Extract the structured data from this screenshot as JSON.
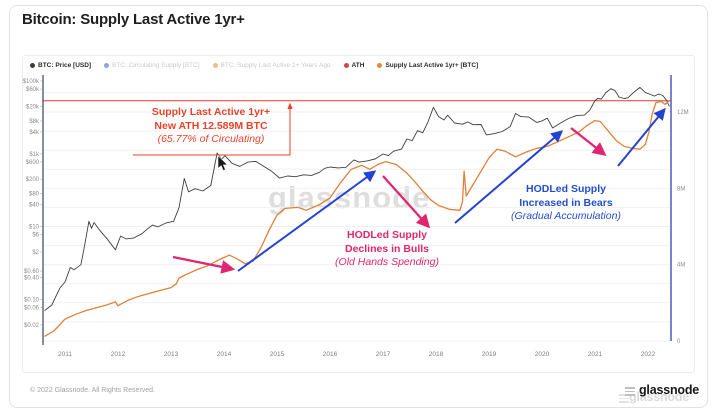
{
  "title": "Bitcoin: Supply Last Active 1yr+",
  "legend": {
    "items": [
      {
        "label": "BTC: Price [USD]",
        "dot_color": "#3d3d3d",
        "enabled": true
      },
      {
        "label": "BTC: Circulating Supply [BTC]",
        "dot_color": "#8aa2e8",
        "enabled": false
      },
      {
        "label": "BTC: Supply Last Active 1+ Years Ago",
        "dot_color": "#f2bb8a",
        "enabled": false
      },
      {
        "label": "ATH",
        "dot_color": "#d6453e",
        "enabled": true
      },
      {
        "label": "Supply Last Active 1yr+ [BTC]",
        "dot_color": "#e8863d",
        "enabled": true
      }
    ]
  },
  "chart_data": {
    "type": "line",
    "title": "Bitcoin: Supply Last Active 1yr+",
    "x_axis": {
      "ticks": [
        2011,
        2012,
        2013,
        2014,
        2015,
        2016,
        2017,
        2018,
        2019,
        2020,
        2021,
        2022
      ],
      "range": [
        2010.6,
        2022.45
      ]
    },
    "left_axis": {
      "name": "BTC Price [USD]",
      "scale": "log",
      "ticks": [
        {
          "label": "$100k",
          "value": 100000
        },
        {
          "label": "$60k",
          "value": 60000
        },
        {
          "label": "$20k",
          "value": 20000
        },
        {
          "label": "$8k",
          "value": 8000
        },
        {
          "label": "$4k",
          "value": 4000
        },
        {
          "label": "$1k",
          "value": 1000
        },
        {
          "label": "$600",
          "value": 600
        },
        {
          "label": "$200",
          "value": 200
        },
        {
          "label": "$80",
          "value": 80
        },
        {
          "label": "$40",
          "value": 40
        },
        {
          "label": "$10",
          "value": 10
        },
        {
          "label": "$6",
          "value": 6
        },
        {
          "label": "$2",
          "value": 2
        },
        {
          "label": "$0.60",
          "value": 0.6
        },
        {
          "label": "$0.40",
          "value": 0.4
        },
        {
          "label": "$0.10",
          "value": 0.1
        },
        {
          "label": "$0.06",
          "value": 0.06
        },
        {
          "label": "$0.02",
          "value": 0.02
        }
      ]
    },
    "right_axis": {
      "name": "Supply Last Active 1yr+ [BTC]",
      "scale": "linear",
      "range_millions": [
        0,
        13
      ],
      "ticks": [
        {
          "label": "12M",
          "value": 12
        },
        {
          "label": "8M",
          "value": 8
        },
        {
          "label": "4M",
          "value": 4
        },
        {
          "label": "0",
          "value": 0
        }
      ]
    },
    "ath": {
      "label": "ATH",
      "value_m_btc": 12.589,
      "percent_of_circulating": "65.77%",
      "color": "#e23b30"
    },
    "series": [
      {
        "name": "BTC: Price [USD]",
        "axis": "left",
        "color": "#3f3f3f",
        "width": 0.9,
        "points": [
          [
            2010.62,
            0.05
          ],
          [
            2010.75,
            0.07
          ],
          [
            2010.9,
            0.2
          ],
          [
            2011.0,
            0.3
          ],
          [
            2011.1,
            0.75
          ],
          [
            2011.17,
            0.65
          ],
          [
            2011.3,
            0.9
          ],
          [
            2011.37,
            3
          ],
          [
            2011.45,
            14
          ],
          [
            2011.5,
            9
          ],
          [
            2011.55,
            13
          ],
          [
            2011.65,
            8
          ],
          [
            2011.8,
            4.5
          ],
          [
            2011.95,
            2.3
          ],
          [
            2012.05,
            5.5
          ],
          [
            2012.15,
            4.6
          ],
          [
            2012.3,
            4.9
          ],
          [
            2012.45,
            6.4
          ],
          [
            2012.55,
            8.5
          ],
          [
            2012.65,
            11
          ],
          [
            2012.75,
            9.8
          ],
          [
            2012.9,
            12.5
          ],
          [
            2013.05,
            14
          ],
          [
            2013.15,
            33
          ],
          [
            2013.25,
            210
          ],
          [
            2013.33,
            90
          ],
          [
            2013.45,
            110
          ],
          [
            2013.6,
            95
          ],
          [
            2013.75,
            135
          ],
          [
            2013.87,
            1050
          ],
          [
            2013.95,
            720
          ],
          [
            2014.02,
            880
          ],
          [
            2014.15,
            550
          ],
          [
            2014.3,
            450
          ],
          [
            2014.45,
            590
          ],
          [
            2014.6,
            620
          ],
          [
            2014.75,
            450
          ],
          [
            2014.9,
            330
          ],
          [
            2015.05,
            215
          ],
          [
            2015.2,
            245
          ],
          [
            2015.35,
            235
          ],
          [
            2015.5,
            265
          ],
          [
            2015.65,
            255
          ],
          [
            2015.8,
            310
          ],
          [
            2015.9,
            400
          ],
          [
            2016.0,
            435
          ],
          [
            2016.15,
            410
          ],
          [
            2016.3,
            425
          ],
          [
            2016.45,
            680
          ],
          [
            2016.55,
            590
          ],
          [
            2016.7,
            640
          ],
          [
            2016.85,
            720
          ],
          [
            2017.0,
            990
          ],
          [
            2017.1,
            890
          ],
          [
            2017.2,
            1180
          ],
          [
            2017.35,
            1350
          ],
          [
            2017.45,
            2550
          ],
          [
            2017.55,
            2300
          ],
          [
            2017.65,
            4300
          ],
          [
            2017.75,
            3800
          ],
          [
            2017.85,
            7500
          ],
          [
            2017.95,
            19000
          ],
          [
            2018.05,
            10500
          ],
          [
            2018.15,
            8500
          ],
          [
            2018.22,
            11500
          ],
          [
            2018.35,
            7000
          ],
          [
            2018.5,
            6500
          ],
          [
            2018.6,
            7500
          ],
          [
            2018.7,
            6300
          ],
          [
            2018.85,
            6400
          ],
          [
            2018.95,
            3300
          ],
          [
            2019.1,
            3600
          ],
          [
            2019.25,
            4100
          ],
          [
            2019.4,
            5600
          ],
          [
            2019.5,
            12800
          ],
          [
            2019.6,
            10500
          ],
          [
            2019.75,
            10200
          ],
          [
            2019.9,
            7300
          ],
          [
            2020.0,
            8000
          ],
          [
            2020.1,
            9500
          ],
          [
            2020.2,
            5100
          ],
          [
            2020.35,
            7000
          ],
          [
            2020.5,
            9300
          ],
          [
            2020.65,
            11200
          ],
          [
            2020.8,
            11600
          ],
          [
            2020.9,
            15800
          ],
          [
            2021.0,
            29000
          ],
          [
            2021.05,
            33000
          ],
          [
            2021.12,
            32000
          ],
          [
            2021.2,
            47000
          ],
          [
            2021.3,
            61500
          ],
          [
            2021.38,
            54000
          ],
          [
            2021.45,
            36500
          ],
          [
            2021.55,
            33000
          ],
          [
            2021.62,
            34500
          ],
          [
            2021.72,
            47500
          ],
          [
            2021.85,
            66500
          ],
          [
            2021.95,
            48000
          ],
          [
            2022.05,
            42500
          ],
          [
            2022.12,
            38500
          ],
          [
            2022.2,
            44000
          ],
          [
            2022.28,
            40000
          ],
          [
            2022.35,
            29500
          ],
          [
            2022.4,
            20500
          ]
        ]
      },
      {
        "name": "Supply Last Active 1yr+ [BTC]",
        "axis": "right",
        "color": "#e0813a",
        "width": 1.3,
        "points": [
          [
            2010.62,
            0.25
          ],
          [
            2010.8,
            0.55
          ],
          [
            2011.0,
            1.15
          ],
          [
            2011.2,
            1.4
          ],
          [
            2011.4,
            1.6
          ],
          [
            2011.6,
            1.75
          ],
          [
            2011.8,
            1.9
          ],
          [
            2011.95,
            2.05
          ],
          [
            2012.0,
            1.85
          ],
          [
            2012.2,
            2.15
          ],
          [
            2012.4,
            2.35
          ],
          [
            2012.6,
            2.5
          ],
          [
            2012.8,
            2.65
          ],
          [
            2013.0,
            2.8
          ],
          [
            2013.1,
            3.0
          ],
          [
            2013.15,
            3.3
          ],
          [
            2013.3,
            3.5
          ],
          [
            2013.5,
            3.75
          ],
          [
            2013.7,
            3.95
          ],
          [
            2013.9,
            4.25
          ],
          [
            2014.1,
            4.5
          ],
          [
            2014.25,
            4.3
          ],
          [
            2014.4,
            4.05
          ],
          [
            2014.55,
            4.2
          ],
          [
            2014.7,
            4.9
          ],
          [
            2014.85,
            5.8
          ],
          [
            2015.0,
            6.6
          ],
          [
            2015.15,
            6.95
          ],
          [
            2015.4,
            7.0
          ],
          [
            2015.55,
            6.85
          ],
          [
            2015.8,
            7.15
          ],
          [
            2016.0,
            7.5
          ],
          [
            2016.2,
            8.3
          ],
          [
            2016.4,
            9.0
          ],
          [
            2016.6,
            9.2
          ],
          [
            2016.75,
            9.0
          ],
          [
            2016.9,
            9.25
          ],
          [
            2017.05,
            9.4
          ],
          [
            2017.25,
            9.25
          ],
          [
            2017.45,
            8.8
          ],
          [
            2017.6,
            8.35
          ],
          [
            2017.75,
            7.85
          ],
          [
            2017.9,
            7.4
          ],
          [
            2018.05,
            7.1
          ],
          [
            2018.25,
            6.9
          ],
          [
            2018.45,
            6.85
          ],
          [
            2018.5,
            7.3
          ],
          [
            2018.53,
            8.9
          ],
          [
            2018.57,
            7.6
          ],
          [
            2018.7,
            8.2
          ],
          [
            2018.85,
            8.9
          ],
          [
            2019.0,
            9.6
          ],
          [
            2019.15,
            10.05
          ],
          [
            2019.3,
            9.95
          ],
          [
            2019.5,
            9.65
          ],
          [
            2019.7,
            9.9
          ],
          [
            2019.9,
            10.1
          ],
          [
            2020.1,
            10.2
          ],
          [
            2020.3,
            10.45
          ],
          [
            2020.5,
            10.7
          ],
          [
            2020.7,
            10.95
          ],
          [
            2020.85,
            11.3
          ],
          [
            2021.0,
            11.55
          ],
          [
            2021.1,
            11.5
          ],
          [
            2021.25,
            11.0
          ],
          [
            2021.4,
            10.5
          ],
          [
            2021.55,
            10.2
          ],
          [
            2021.7,
            10.1
          ],
          [
            2021.85,
            10.05
          ],
          [
            2021.95,
            10.3
          ],
          [
            2022.02,
            11.0
          ],
          [
            2022.08,
            11.9
          ],
          [
            2022.15,
            12.5
          ],
          [
            2022.25,
            12.55
          ],
          [
            2022.32,
            12.4
          ],
          [
            2022.4,
            12.589
          ]
        ]
      }
    ],
    "annotations": [
      {
        "id": "ath-note",
        "color": "#e8432a",
        "lines": [
          "Supply Last Active 1yr+",
          "New ATH 12.589M BTC",
          "(65.77% of Circulating)"
        ]
      },
      {
        "id": "bulls-note",
        "color": "#e0266e",
        "lines": [
          "HODLed Supply",
          "Declines in Bulls",
          "(Old Hands Spending)"
        ]
      },
      {
        "id": "bears-note",
        "color": "#2150d0",
        "lines": [
          "HODLed Supply",
          "Increased in Bears",
          "(Gradual Accumulation)"
        ]
      }
    ],
    "arrows": [
      {
        "meaning": "accumulation",
        "color": "#2443d2",
        "width": 2,
        "from": [
          238,
          271
        ],
        "to": [
          374,
          172
        ]
      },
      {
        "meaning": "accumulation",
        "color": "#2443d2",
        "width": 2,
        "from": [
          455,
          223
        ],
        "to": [
          561,
          132
        ]
      },
      {
        "meaning": "accumulation",
        "color": "#2443d2",
        "width": 2,
        "from": [
          618,
          166
        ],
        "to": [
          664,
          110
        ]
      },
      {
        "meaning": "distribution",
        "color": "#e0266e",
        "width": 2.3,
        "from": [
          173,
          257
        ],
        "to": [
          232,
          269
        ]
      },
      {
        "meaning": "distribution",
        "color": "#e0266e",
        "width": 2.3,
        "from": [
          383,
          176
        ],
        "to": [
          428,
          226
        ]
      },
      {
        "meaning": "distribution",
        "color": "#e0266e",
        "width": 2.3,
        "from": [
          571,
          128
        ],
        "to": [
          604,
          154
        ]
      }
    ],
    "grid": {
      "horizontal_every_m": 1,
      "color": "#f0f0f0"
    }
  },
  "watermark": "glassnode",
  "footer": {
    "copyright": "© 2022 Glassnode. All Rights Reserved.",
    "logo_text": "glassnode"
  }
}
